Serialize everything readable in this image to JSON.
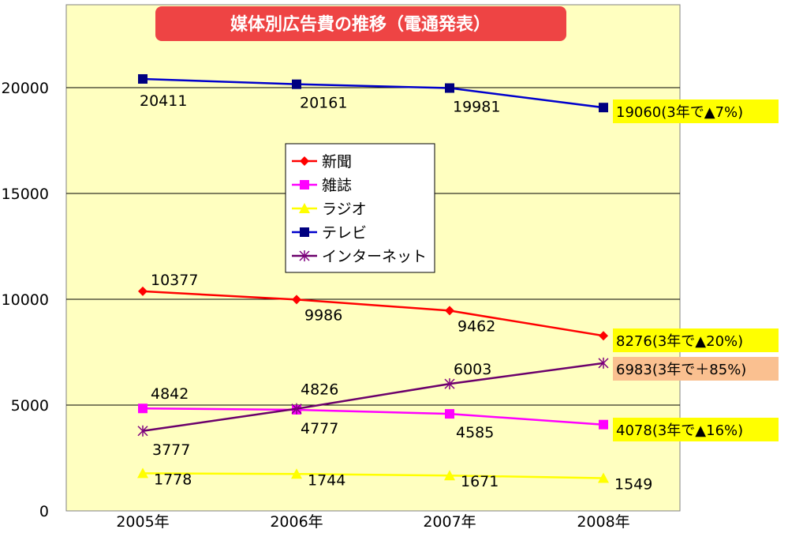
{
  "chart_data": {
    "type": "line",
    "title": "媒体別広告費の推移（電通発表）",
    "categories": [
      "2005年",
      "2006年",
      "2007年",
      "2008年"
    ],
    "ylim": [
      0,
      25000
    ],
    "yticks": [
      "0",
      "5000",
      "10000",
      "15000",
      "20000"
    ],
    "grid": true,
    "legend_position": "center",
    "series": [
      {
        "name": "新聞",
        "color": "#ff0000",
        "marker": "diamond",
        "values": [
          10377,
          9986,
          9462,
          8276
        ],
        "labels": [
          "10377",
          "9986",
          "9462",
          "8276"
        ]
      },
      {
        "name": "雑誌",
        "color": "#ff00ff",
        "marker": "square",
        "values": [
          4842,
          4777,
          4585,
          4078
        ],
        "labels": [
          "4842",
          "4777",
          "4585",
          "4078"
        ]
      },
      {
        "name": "ラジオ",
        "color": "#ffff00",
        "marker": "triangle",
        "values": [
          1778,
          1744,
          1671,
          1549
        ],
        "labels": [
          "1778",
          "1744",
          "1671",
          "1549"
        ]
      },
      {
        "name": "テレビ",
        "color": "#000080",
        "line_color": "#0000cc",
        "marker": "square",
        "values": [
          20411,
          20161,
          19981,
          19060
        ],
        "labels": [
          "20411",
          "20161",
          "19981",
          "19060"
        ]
      },
      {
        "name": "インターネット",
        "color": "#800080",
        "line_color": "#6b006b",
        "marker": "star",
        "values": [
          3777,
          4826,
          6003,
          6983
        ],
        "labels": [
          "3777",
          "4826",
          "6003",
          "6983"
        ]
      }
    ],
    "callouts": [
      {
        "series": "テレビ",
        "text": "(3年で▲7%)",
        "bg": "#ffff00"
      },
      {
        "series": "新聞",
        "text": "(3年で▲20%)",
        "bg": "#ffff00"
      },
      {
        "series": "インターネット",
        "text": "(3年で＋85%)",
        "bg": "#fac090"
      },
      {
        "series": "雑誌",
        "text": "(3年で▲16%)",
        "bg": "#ffff00"
      }
    ],
    "colors": {
      "plot_bg": "#ffffc0",
      "title_bg": "#ee4444",
      "gridline": "#000000"
    }
  }
}
